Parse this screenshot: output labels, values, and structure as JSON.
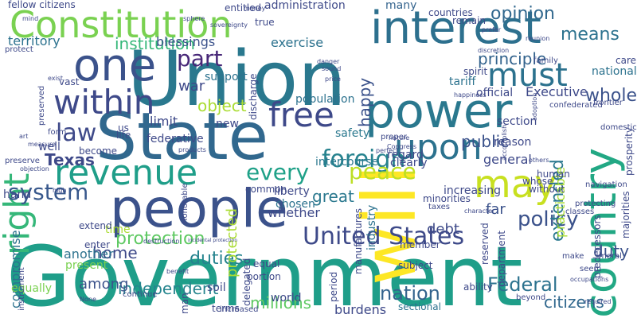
{
  "words": [
    {
      "text": "Government",
      "color": "#1f9e89"
    },
    {
      "text": "Union",
      "color": "#2a788e"
    },
    {
      "text": "State",
      "color": "#31688e"
    },
    {
      "text": "will",
      "color": "#fde725"
    },
    {
      "text": "power",
      "color": "#2a788e"
    },
    {
      "text": "people",
      "color": "#3b528b"
    },
    {
      "text": "interest",
      "color": "#2d708e"
    },
    {
      "text": "Constitution",
      "color": "#7ad151"
    },
    {
      "text": "one",
      "color": "#3b528b"
    },
    {
      "text": "right",
      "color": "#35b779"
    },
    {
      "text": "country",
      "color": "#22a884"
    },
    {
      "text": "revenue",
      "color": "#1f9e89"
    },
    {
      "text": "may",
      "color": "#c8e020"
    },
    {
      "text": "free",
      "color": "#3e4989"
    },
    {
      "text": "within",
      "color": "#3e4989"
    },
    {
      "text": "upon",
      "color": "#2c728e"
    },
    {
      "text": "must",
      "color": "#2c728e"
    },
    {
      "text": "foreign",
      "color": "#26828e"
    },
    {
      "text": "peace",
      "color": "#bddf26"
    },
    {
      "text": "every",
      "color": "#1fa188"
    },
    {
      "text": "United States",
      "color": "#3e4a89"
    },
    {
      "text": "system",
      "color": "#38588c"
    },
    {
      "text": "law",
      "color": "#3e4989"
    },
    {
      "text": "part",
      "color": "#482878"
    },
    {
      "text": "policy",
      "color": "#3b528b"
    },
    {
      "text": "Texas",
      "color": "#3e4989"
    },
    {
      "text": "protection",
      "color": "#5ec962"
    },
    {
      "text": "duties",
      "color": "#25838e"
    },
    {
      "text": "extended",
      "color": "#2a788e"
    },
    {
      "text": "whole",
      "color": "#3b528b"
    },
    {
      "text": "duty",
      "color": "#3b528b"
    },
    {
      "text": "Federal",
      "color": "#2c728e"
    },
    {
      "text": "nation",
      "color": "#33638d"
    },
    {
      "text": "citizens",
      "color": "#31688e"
    },
    {
      "text": "independent",
      "color": "#25858e"
    },
    {
      "text": "millions",
      "color": "#5ec962"
    },
    {
      "text": "among",
      "color": "#3b528b"
    },
    {
      "text": "home",
      "color": "#3e4989"
    },
    {
      "text": "debt",
      "color": "#3e4a89"
    },
    {
      "text": "great",
      "color": "#2a788e"
    },
    {
      "text": "principle",
      "color": "#33638d"
    },
    {
      "text": "opinion",
      "color": "#31688e"
    },
    {
      "text": "means",
      "color": "#2c728e"
    },
    {
      "text": "object",
      "color": "#aadc32"
    },
    {
      "text": "territory",
      "color": "#2c728e"
    },
    {
      "text": "institution",
      "color": "#35b779"
    },
    {
      "text": "blessings",
      "color": "#3b528b"
    },
    {
      "text": "administration",
      "color": "#3e4989"
    },
    {
      "text": "happy",
      "color": "#3b528b"
    },
    {
      "text": "many",
      "color": "#33638d"
    },
    {
      "text": "countries",
      "color": "#3e4989"
    },
    {
      "text": "remain",
      "color": "#3e4989"
    },
    {
      "text": "exercise",
      "color": "#2c728e"
    },
    {
      "text": "support",
      "color": "#2c728e"
    },
    {
      "text": "war",
      "color": "#3e4989"
    },
    {
      "text": "limit",
      "color": "#3e4989"
    },
    {
      "text": "new",
      "color": "#3e4989"
    },
    {
      "text": "well",
      "color": "#3e4989"
    },
    {
      "text": "safety",
      "color": "#2a788e"
    },
    {
      "text": "population",
      "color": "#2c728e"
    },
    {
      "text": "public",
      "color": "#3b528b"
    },
    {
      "text": "general",
      "color": "#3e4989"
    },
    {
      "text": "increasing",
      "color": "#3e4989"
    },
    {
      "text": "regard",
      "color": "#3e4989"
    },
    {
      "text": "clearly",
      "color": "#3e4989"
    },
    {
      "text": "intercourse",
      "color": "#2a788e"
    },
    {
      "text": "liberty",
      "color": "#3e4989"
    },
    {
      "text": "chosen",
      "color": "#2c728e"
    },
    {
      "text": "whether",
      "color": "#3e4989"
    },
    {
      "text": "industry",
      "color": "#2c728e"
    },
    {
      "text": "far",
      "color": "#3b528b"
    },
    {
      "text": "hand",
      "color": "#3e4989"
    },
    {
      "text": "time",
      "color": "#aadc32"
    },
    {
      "text": "compromise",
      "color": "#2c728e"
    },
    {
      "text": "another",
      "color": "#2c728e"
    },
    {
      "text": "present",
      "color": "#7ad151"
    },
    {
      "text": "equally",
      "color": "#7ad151"
    },
    {
      "text": "soil",
      "color": "#3e4989"
    },
    {
      "text": "terms",
      "color": "#3e4989"
    },
    {
      "text": "world",
      "color": "#3e4989"
    },
    {
      "text": "burdens",
      "color": "#3e4989"
    },
    {
      "text": "section",
      "color": "#3e4989"
    },
    {
      "text": "reason",
      "color": "#3e4989"
    },
    {
      "text": "Executive",
      "color": "#3e4989"
    },
    {
      "text": "official",
      "color": "#3e4989"
    },
    {
      "text": "national",
      "color": "#2c728e"
    },
    {
      "text": "protected",
      "color": "#aadc32"
    },
    {
      "text": "federative",
      "color": "#3e4989"
    },
    {
      "text": "sectional",
      "color": "#2c728e"
    },
    {
      "text": "tariff",
      "color": "#2c728e"
    },
    {
      "text": "spirit",
      "color": "#3e4989"
    },
    {
      "text": "entitled",
      "color": "#3e4989"
    },
    {
      "text": "fellow citizens",
      "color": "#3e4989"
    },
    {
      "text": "true",
      "color": "#3e4989"
    },
    {
      "text": "discharge",
      "color": "#3e4989"
    },
    {
      "text": "reserved",
      "color": "#3e4989"
    },
    {
      "text": "department",
      "color": "#3e4989"
    },
    {
      "text": "manufactures",
      "color": "#3e4989"
    },
    {
      "text": "subject",
      "color": "#3e4989"
    },
    {
      "text": "practicable",
      "color": "#aadc32"
    },
    {
      "text": "predecessors",
      "color": "#3e4989"
    },
    {
      "text": "prosperity",
      "color": "#3e4989"
    },
    {
      "text": "majorities",
      "color": "#3e4989"
    },
    {
      "text": "human",
      "color": "#3e4989"
    },
    {
      "text": "whose",
      "color": "#3e4989"
    },
    {
      "text": "without",
      "color": "#3e4989"
    },
    {
      "text": "ability",
      "color": "#3e4989"
    },
    {
      "text": "delegated",
      "color": "#3e4989"
    },
    {
      "text": "portion",
      "color": "#3e4989"
    },
    {
      "text": "period",
      "color": "#3e4989"
    },
    {
      "text": "equal",
      "color": "#3e4989"
    },
    {
      "text": "common",
      "color": "#3e4989"
    },
    {
      "text": "extend",
      "color": "#3e4989"
    },
    {
      "text": "enter",
      "color": "#3e4989"
    },
    {
      "text": "instrument",
      "color": "#3e4989"
    },
    {
      "text": "life",
      "color": "#3e4989"
    },
    {
      "text": "become",
      "color": "#3e4989"
    },
    {
      "text": "preserve",
      "color": "#3e4989"
    },
    {
      "text": "form",
      "color": "#3e4989"
    },
    {
      "text": "vast",
      "color": "#3e4989"
    },
    {
      "text": "protect",
      "color": "#3e4989"
    },
    {
      "text": "care",
      "color": "#3e4989"
    },
    {
      "text": "family",
      "color": "#3e4989"
    },
    {
      "text": "frontier",
      "color": "#3e4989"
    },
    {
      "text": "confederated",
      "color": "#3e4989"
    },
    {
      "text": "domestic",
      "color": "#3e4989"
    },
    {
      "text": "navigation",
      "color": "#3e4989"
    },
    {
      "text": "protecting",
      "color": "#3e4989"
    },
    {
      "text": "classes",
      "color": "#3e4989"
    },
    {
      "text": "moral",
      "color": "#3e4989"
    },
    {
      "text": "make",
      "color": "#3e4989"
    },
    {
      "text": "seem",
      "color": "#3e4989"
    },
    {
      "text": "beyond",
      "color": "#3e4989"
    },
    {
      "text": "required",
      "color": "#3e4989"
    },
    {
      "text": "continue",
      "color": "#3e4989"
    },
    {
      "text": "None",
      "color": "#3e4989"
    },
    {
      "text": "increased",
      "color": "#3e4989"
    },
    {
      "text": "man",
      "color": "#3e4989"
    },
    {
      "text": "benefit",
      "color": "#3e4989"
    },
    {
      "text": "destruction",
      "color": "#3e4989"
    },
    {
      "text": "incidental protection",
      "color": "#3e4989"
    },
    {
      "text": "minorities",
      "color": "#3e4989"
    },
    {
      "text": "taxes",
      "color": "#3e4989"
    },
    {
      "text": "member",
      "color": "#3e4989"
    },
    {
      "text": "Congress",
      "color": "#3e4989"
    },
    {
      "text": "perfect",
      "color": "#3e4989"
    },
    {
      "text": "products",
      "color": "#3e4989"
    },
    {
      "text": "proper",
      "color": "#3e4989"
    },
    {
      "text": "us",
      "color": "#3e4989"
    },
    {
      "text": "high",
      "color": "#3e4989"
    },
    {
      "text": "objection",
      "color": "#3e4989"
    },
    {
      "text": "art",
      "color": "#3e4989"
    },
    {
      "text": "measure",
      "color": "#3e4989"
    },
    {
      "text": "exist",
      "color": "#3e4989"
    },
    {
      "text": "mind",
      "color": "#3e4989"
    },
    {
      "text": "sphere",
      "color": "#3e4989"
    },
    {
      "text": "money",
      "color": "#3e4989"
    },
    {
      "text": "sovereignty",
      "color": "#3e4989"
    },
    {
      "text": "sound",
      "color": "#3e4989"
    },
    {
      "text": "danger",
      "color": "#3e4989"
    },
    {
      "text": "price",
      "color": "#3e4989"
    },
    {
      "text": "happiness",
      "color": "#3e4989"
    },
    {
      "text": "discretion",
      "color": "#3e4989"
    },
    {
      "text": "prefer",
      "color": "#3e4989"
    },
    {
      "text": "reunion",
      "color": "#3e4989"
    },
    {
      "text": "nature",
      "color": "#3e4989"
    },
    {
      "text": "character",
      "color": "#3e4989"
    },
    {
      "text": "accomplish",
      "color": "#3e4989"
    },
    {
      "text": "adoption",
      "color": "#3e4989"
    },
    {
      "text": "others",
      "color": "#3e4989"
    },
    {
      "text": "Honorable",
      "color": "#3e4989"
    },
    {
      "text": "occupations",
      "color": "#3e4989"
    },
    {
      "text": "preserved",
      "color": "#3e4989"
    }
  ]
}
